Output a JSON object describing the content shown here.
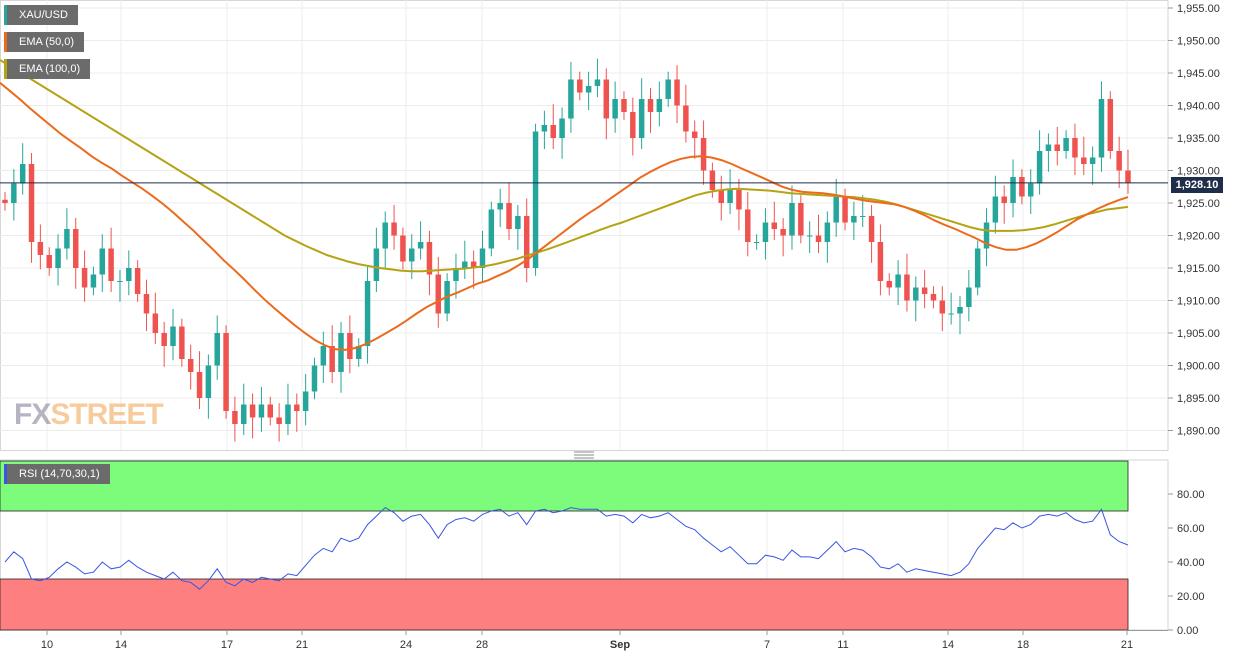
{
  "legend": {
    "symbol": "XAU/USD",
    "ema50": "EMA (50,0)",
    "ema100": "EMA (100,0)",
    "rsi": "RSI (14,70,30,1)"
  },
  "logo": {
    "fx": "FX",
    "street": "STREET"
  },
  "last_price": "1,928.10",
  "colors": {
    "up": "#26a69a",
    "down": "#ef5350",
    "ema50": "#ec6a1c",
    "ema100": "#b5a315",
    "rsi": "#3a55e6",
    "overbought": "#7dfc7b",
    "oversold": "#fd7f7f"
  },
  "chart_data": {
    "type": "candlestick",
    "price_axis": {
      "min": 1887.0,
      "max": 1955.0,
      "ticks": [
        "1,955.00",
        "1,950.00",
        "1,945.00",
        "1,940.00",
        "1,935.00",
        "1,930.00",
        "1,925.00",
        "1,920.00",
        "1,915.00",
        "1,910.00",
        "1,905.00",
        "1,900.00",
        "1,895.00",
        "1,890.00"
      ]
    },
    "rsi_axis": {
      "min": 0,
      "max": 100,
      "ticks": [
        "80.00",
        "60.00",
        "40.00",
        "20.00",
        "0.00"
      ],
      "overbought": 70,
      "oversold": 30
    },
    "x_ticks": [
      "10",
      "14",
      "17",
      "21",
      "24",
      "28",
      "Sep",
      "7",
      "11",
      "14",
      "18",
      "21"
    ],
    "last_price": 1928.1,
    "closes": [
      1925,
      1928,
      1931,
      1919,
      1917,
      1915,
      1918,
      1921,
      1915,
      1912,
      1914,
      1918,
      1913,
      1913,
      1915,
      1911,
      1908,
      1905,
      1903,
      1906,
      1901,
      1899,
      1895,
      1900,
      1905,
      1893,
      1891,
      1894,
      1892,
      1894,
      1892,
      1891,
      1894,
      1893,
      1896,
      1900,
      1903,
      1899,
      1905,
      1901,
      1903,
      1913,
      1918,
      1922,
      1920,
      1916,
      1918,
      1919,
      1914,
      1908,
      1913,
      1915,
      1916,
      1915,
      1918,
      1924,
      1925,
      1921,
      1923,
      1915,
      1936,
      1937,
      1935,
      1938,
      1944,
      1942,
      1943,
      1944,
      1938,
      1941,
      1939,
      1935,
      1941,
      1939,
      1941,
      1944,
      1940,
      1936,
      1935,
      1930,
      1927,
      1925,
      1927,
      1924,
      1919,
      1919,
      1922,
      1921,
      1920,
      1925,
      1920,
      1920,
      1919,
      1922,
      1926,
      1922,
      1923,
      1923,
      1919,
      1913,
      1912,
      1914,
      1910,
      1912,
      1911,
      1910,
      1908,
      1908,
      1909,
      1912,
      1918,
      1922,
      1926,
      1925,
      1929,
      1926,
      1928,
      1933,
      1934,
      1933,
      1935,
      1932,
      1931,
      1932,
      1941,
      1933,
      1930,
      1928.1
    ],
    "ema50": [
      1943.5,
      1942.2,
      1940.9,
      1939.5,
      1938.2,
      1936.9,
      1935.6,
      1934.5,
      1933.4,
      1932.2,
      1931.2,
      1930.3,
      1929.2,
      1928.2,
      1927.2,
      1926.1,
      1924.9,
      1923.6,
      1922.2,
      1920.8,
      1919.3,
      1917.8,
      1916.2,
      1914.8,
      1913.3,
      1911.7,
      1910.2,
      1908.8,
      1907.5,
      1906.2,
      1905.0,
      1903.9,
      1903.1,
      1902.5,
      1902.4,
      1902.7,
      1903.3,
      1904.1,
      1905.0,
      1905.9,
      1906.9,
      1908.0,
      1909.0,
      1909.8,
      1910.6,
      1911.2,
      1911.9,
      1912.6,
      1913.1,
      1913.8,
      1914.5,
      1915.4,
      1916.4,
      1917.6,
      1918.8,
      1920.0,
      1921.2,
      1922.4,
      1923.5,
      1924.5,
      1925.6,
      1926.7,
      1927.8,
      1928.9,
      1929.8,
      1930.6,
      1931.3,
      1931.8,
      1932.1,
      1932.2,
      1932.0,
      1931.6,
      1931.0,
      1930.3,
      1929.6,
      1928.9,
      1928.2,
      1927.5,
      1927.0,
      1926.7,
      1926.6,
      1926.5,
      1926.3,
      1926.0,
      1925.7,
      1925.4,
      1925.2,
      1925.0,
      1924.8,
      1924.4,
      1923.8,
      1923.1,
      1922.3,
      1921.6,
      1921.0,
      1920.3,
      1919.6,
      1918.8,
      1918.2,
      1917.8,
      1917.8,
      1918.2,
      1918.8,
      1919.6,
      1920.5,
      1921.5,
      1922.5,
      1923.3,
      1924.1,
      1924.8,
      1925.4,
      1925.9
    ],
    "ema100": [
      1947.0,
      1946.0,
      1945.0,
      1944.0,
      1943.0,
      1942.0,
      1941.0,
      1940.0,
      1939.0,
      1938.0,
      1937.0,
      1936.0,
      1935.0,
      1934.0,
      1933.0,
      1932.0,
      1931.0,
      1930.0,
      1929.0,
      1928.0,
      1927.0,
      1926.0,
      1925.0,
      1924.0,
      1923.0,
      1922.0,
      1921.0,
      1920.0,
      1919.2,
      1918.4,
      1917.7,
      1917.0,
      1916.5,
      1916.0,
      1915.6,
      1915.3,
      1915.0,
      1914.8,
      1914.6,
      1914.5,
      1914.5,
      1914.6,
      1914.7,
      1914.8,
      1914.9,
      1915.1,
      1915.3,
      1915.6,
      1916.0,
      1916.4,
      1916.9,
      1917.4,
      1917.9,
      1918.5,
      1919.1,
      1919.7,
      1920.3,
      1920.9,
      1921.5,
      1922.0,
      1922.6,
      1923.2,
      1923.8,
      1924.4,
      1925.0,
      1925.6,
      1926.2,
      1926.6,
      1926.9,
      1927.1,
      1927.2,
      1927.1,
      1927.0,
      1926.9,
      1926.7,
      1926.5,
      1926.4,
      1926.3,
      1926.2,
      1926.1,
      1926.0,
      1925.9,
      1925.7,
      1925.5,
      1925.2,
      1924.8,
      1924.3,
      1923.8,
      1923.3,
      1922.8,
      1922.3,
      1921.8,
      1921.3,
      1920.9,
      1920.7,
      1920.7,
      1920.7,
      1920.8,
      1921.0,
      1921.3,
      1921.7,
      1922.2,
      1922.7,
      1923.2,
      1923.6,
      1924.0,
      1924.2,
      1924.4
    ],
    "rsi": [
      40,
      46,
      42,
      30,
      29,
      31,
      36,
      40,
      37,
      33,
      34,
      40,
      36,
      37,
      41,
      37,
      34,
      32,
      30,
      34,
      29,
      28,
      24,
      29,
      36,
      28,
      26,
      30,
      28,
      31,
      30,
      29,
      33,
      32,
      38,
      44,
      48,
      46,
      54,
      52,
      54,
      62,
      67,
      72,
      69,
      64,
      67,
      68,
      62,
      54,
      62,
      65,
      66,
      64,
      68,
      70,
      71,
      67,
      69,
      62,
      70,
      71,
      69,
      70,
      72,
      71,
      71,
      71,
      67,
      68,
      67,
      63,
      68,
      66,
      67,
      69,
      65,
      61,
      59,
      54,
      50,
      46,
      49,
      44,
      39,
      39,
      44,
      43,
      41,
      47,
      43,
      43,
      42,
      47,
      52,
      46,
      48,
      47,
      43,
      37,
      36,
      39,
      34,
      36,
      35,
      34,
      33,
      32,
      34,
      39,
      48,
      54,
      60,
      59,
      63,
      60,
      62,
      67,
      68,
      67,
      69,
      65,
      63,
      64,
      71,
      56,
      52,
      50
    ]
  }
}
